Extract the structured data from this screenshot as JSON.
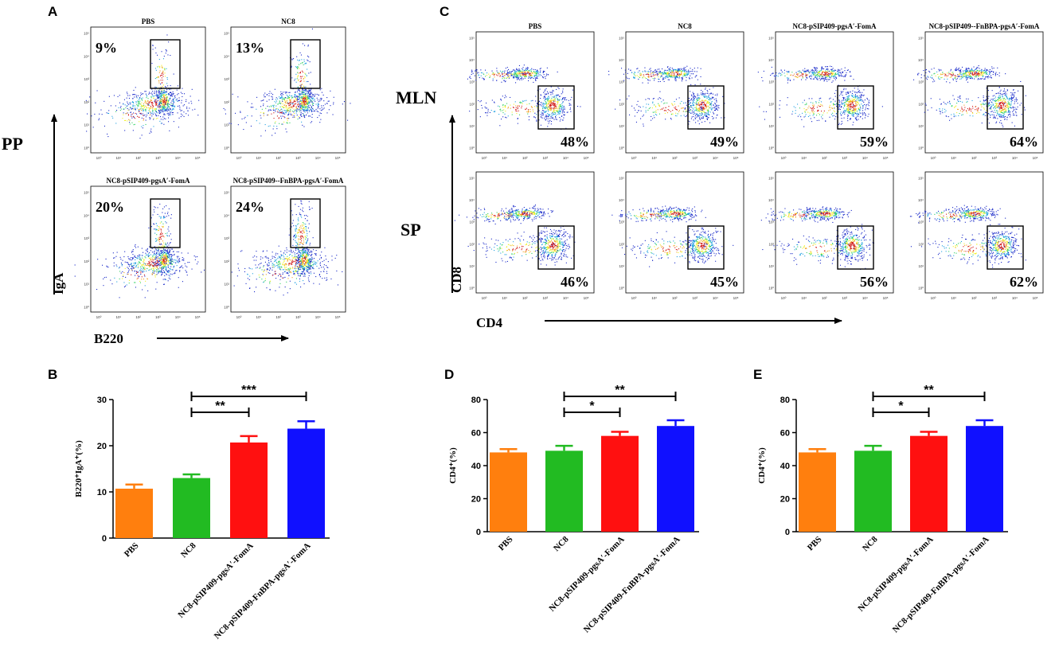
{
  "panels": {
    "A": "A",
    "B": "B",
    "C": "C",
    "D": "D",
    "E": "E"
  },
  "colors": {
    "PBS": "#ff7f0e",
    "NC8": "#22bb22",
    "pgsA": "#ff1010",
    "FnBPA": "#1010ff"
  },
  "panel_a": {
    "row_label": "PP",
    "y_label": "IgA",
    "x_label": "B220",
    "plots": [
      {
        "title": "PBS",
        "percent": "9%"
      },
      {
        "title": "NC8",
        "percent": "13%"
      },
      {
        "title": "NC8-pSIP409-pgsA′-FomA",
        "percent": "20%"
      },
      {
        "title": "NC8-pSIP409--FnBPA-pgsA′-FomA",
        "percent": "24%"
      }
    ]
  },
  "panel_c": {
    "row_labels": [
      "MLN",
      "SP"
    ],
    "y_label": "CD8",
    "x_label": "CD4",
    "titles": [
      "PBS",
      "NC8",
      "NC8-pSIP409-pgsA′-FomA",
      "NC8-pSIP409--FnBPA-pgsA′-FomA"
    ],
    "mln_percents": [
      "48%",
      "49%",
      "59%",
      "64%"
    ],
    "sp_percents": [
      "46%",
      "45%",
      "56%",
      "62%"
    ]
  },
  "flow_ticks": {
    "x": [
      "10⁰",
      "10¹",
      "10²",
      "10³",
      "10⁴",
      "10⁵"
    ],
    "y": [
      "10⁰",
      "10¹",
      "10²",
      "10³",
      "10⁴",
      "10⁵"
    ]
  },
  "chart_data": [
    {
      "panel": "B",
      "type": "bar",
      "categories": [
        "PBS",
        "NC8",
        "NC8-pSIP409-pgsA′-FomA",
        "NC8-pSIP409-FnBPA-pgsA′-FomA"
      ],
      "values": [
        10.7,
        13.0,
        20.7,
        23.7
      ],
      "errors": [
        0.9,
        0.8,
        1.4,
        1.6
      ],
      "ylabel": "B220⁺IgA⁺(%)",
      "ylim": [
        0,
        30
      ],
      "yticks": [
        "0",
        "10",
        "20",
        "30"
      ],
      "ytick_values": [
        0,
        10,
        20,
        30
      ],
      "significance": [
        {
          "from": 1,
          "to": 2,
          "label": "**"
        },
        {
          "from": 1,
          "to": 3,
          "label": "***"
        }
      ]
    },
    {
      "panel": "D",
      "type": "bar",
      "categories": [
        "PBS",
        "NC8",
        "NC8-pSIP409-pgsA′-FomA",
        "NC8-pSIP409-FnBPA-pgsA′-FomA"
      ],
      "values": [
        48,
        49,
        58,
        64
      ],
      "errors": [
        2,
        3,
        2.5,
        3.5
      ],
      "ylabel": "CD4⁺(%)",
      "ylim": [
        0,
        80
      ],
      "yticks": [
        "0",
        "20",
        "40",
        "60",
        "80"
      ],
      "ytick_values": [
        0,
        20,
        40,
        60,
        80
      ],
      "significance": [
        {
          "from": 1,
          "to": 2,
          "label": "*"
        },
        {
          "from": 1,
          "to": 3,
          "label": "**"
        }
      ]
    },
    {
      "panel": "E",
      "type": "bar",
      "categories": [
        "PBS",
        "NC8",
        "NC8-pSIP409-pgsA′-FomA",
        "NC8-pSIP409-FnBPA-pgsA′-FomA"
      ],
      "values": [
        48,
        49,
        58,
        64
      ],
      "errors": [
        2,
        3,
        2.5,
        3.5
      ],
      "ylabel": "CD4⁺(%)",
      "ylim": [
        0,
        80
      ],
      "yticks": [
        "0",
        "20",
        "40",
        "60",
        "80"
      ],
      "ytick_values": [
        0,
        20,
        40,
        60,
        80
      ],
      "significance": [
        {
          "from": 1,
          "to": 2,
          "label": "*"
        },
        {
          "from": 1,
          "to": 3,
          "label": "**"
        }
      ]
    }
  ]
}
